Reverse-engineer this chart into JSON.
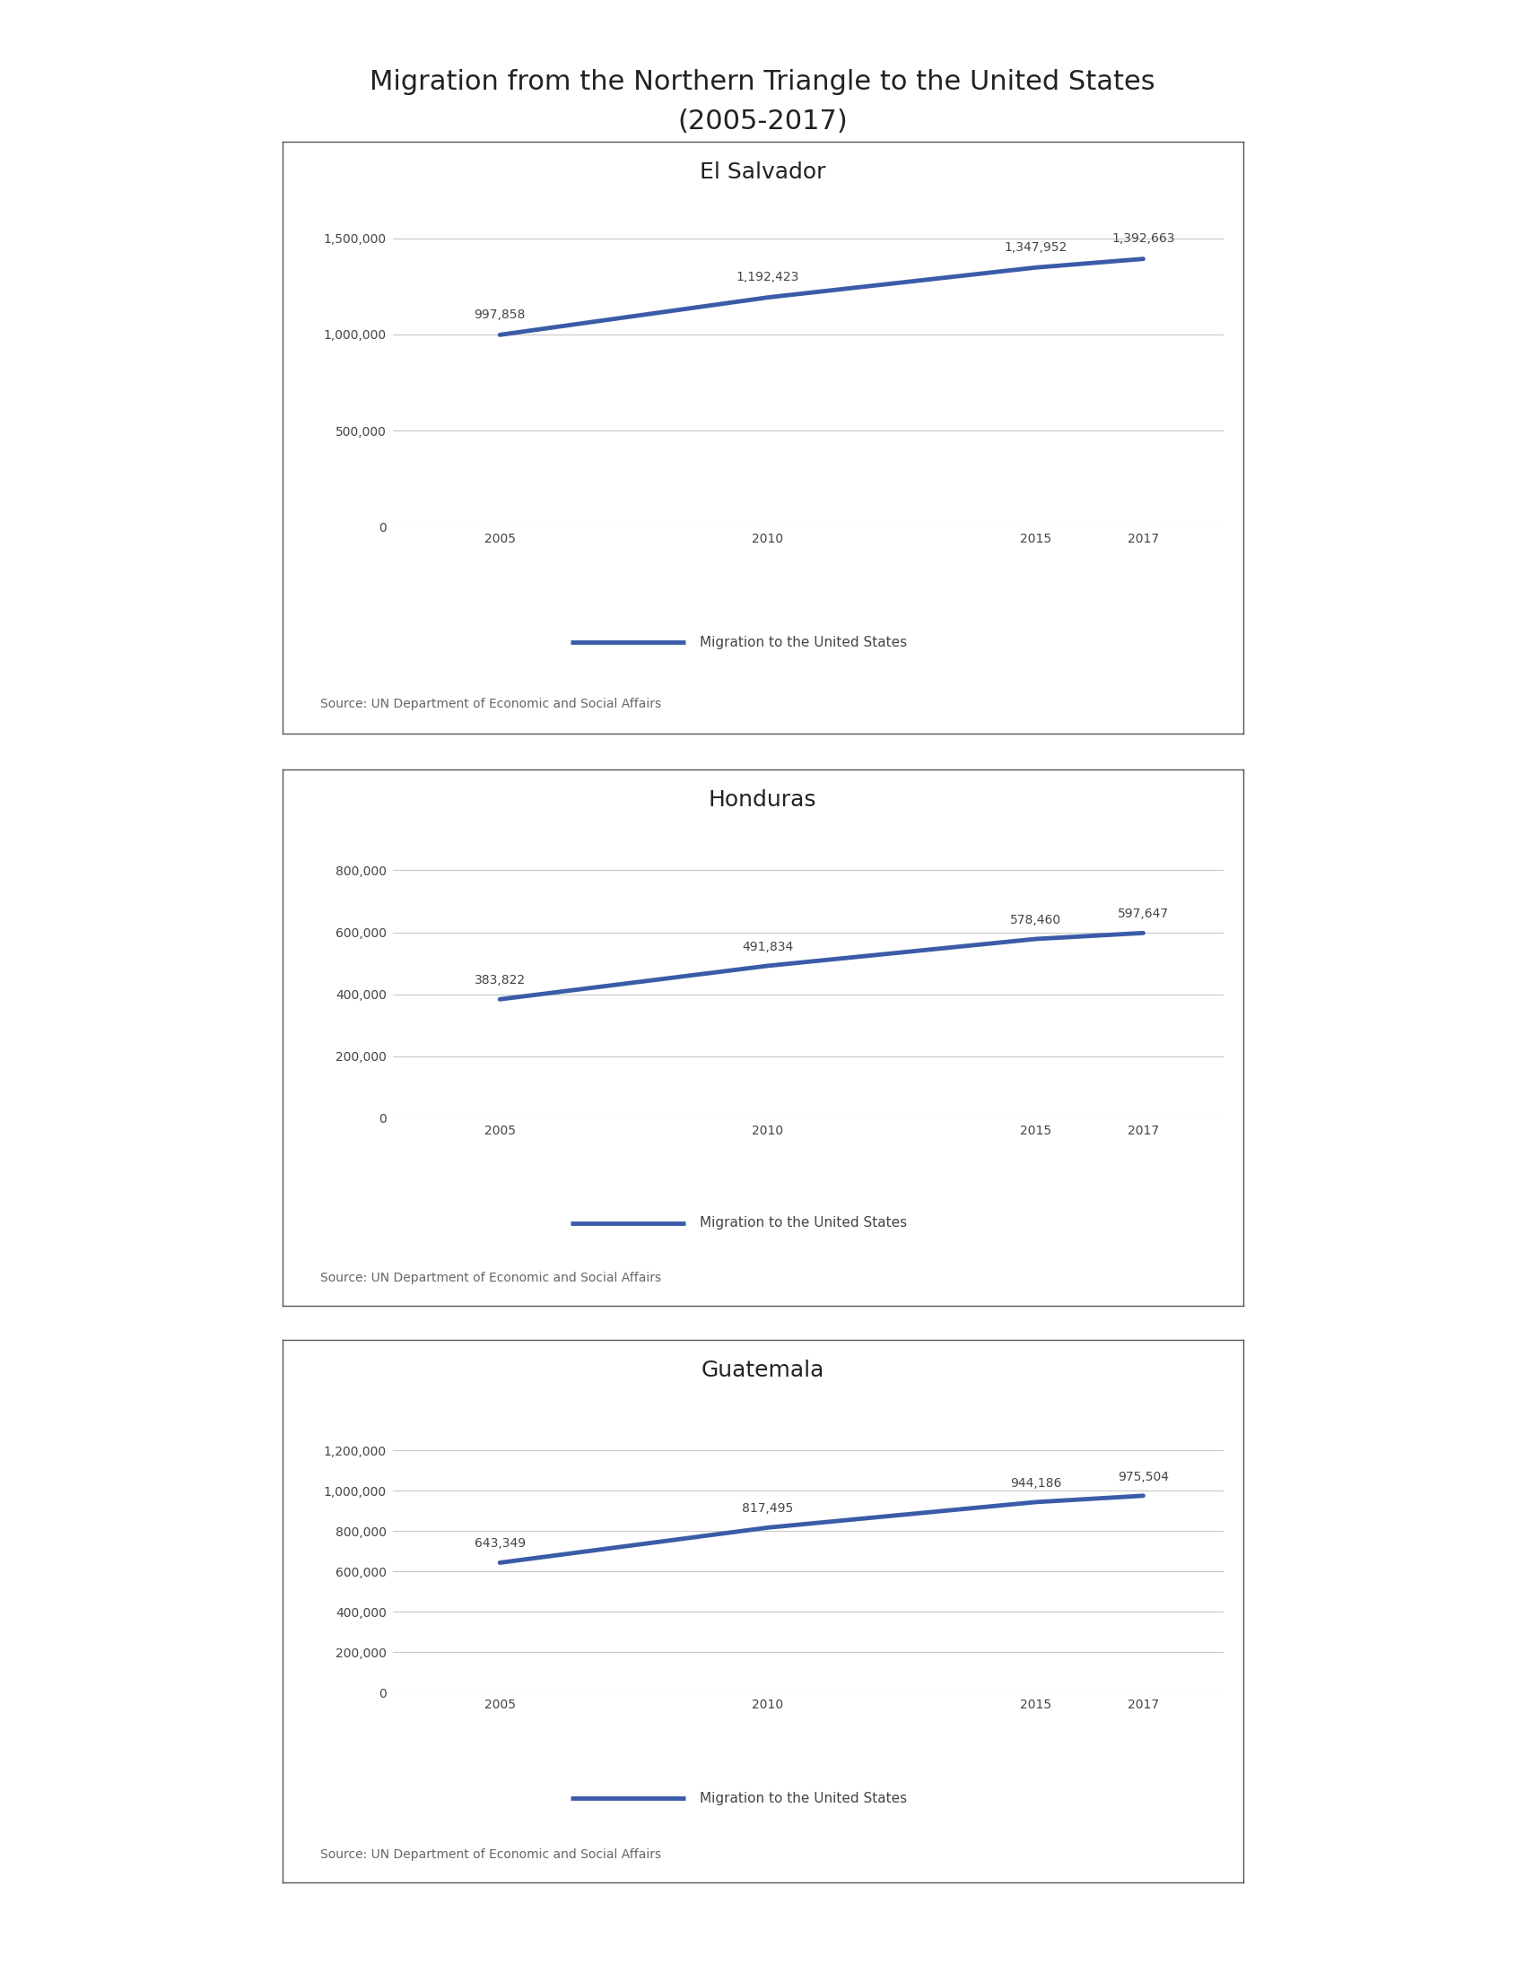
{
  "title_line1": "Migration from the Northern Triangle to the United States",
  "title_line2": "(2005-2017)",
  "title_fontsize": 22,
  "background_color": "#ffffff",
  "charts": [
    {
      "country": "El Salvador",
      "years": [
        2005,
        2010,
        2015,
        2017
      ],
      "values": [
        997858,
        1192423,
        1347952,
        1392663
      ],
      "labels": [
        "997,858",
        "1,192,423",
        "1,347,952",
        "1,392,663"
      ],
      "ylim": [
        0,
        1600000
      ],
      "yticks": [
        0,
        500000,
        1000000,
        1500000
      ],
      "ytick_labels": [
        "0",
        "500,000",
        "1,000,000",
        "1,500,000"
      ],
      "line_color": "#3a5ca8",
      "source": "Source: UN Department of Economic and Social Affairs",
      "legend_label": "Migration to the United States"
    },
    {
      "country": "Honduras",
      "years": [
        2005,
        2010,
        2015,
        2017
      ],
      "values": [
        383822,
        491834,
        578460,
        597647
      ],
      "labels": [
        "383,822",
        "491,834",
        "578,460",
        "597,647"
      ],
      "ylim": [
        0,
        900000
      ],
      "yticks": [
        0,
        200000,
        400000,
        600000,
        800000
      ],
      "ytick_labels": [
        "0",
        "200,000",
        "400,000",
        "600,000",
        "800,000"
      ],
      "line_color": "#3a5ca8",
      "source": "Source: UN Department of Economic and Social Affairs",
      "legend_label": "Migration to the United States"
    },
    {
      "country": "Guatemala",
      "years": [
        2005,
        2010,
        2015,
        2017
      ],
      "values": [
        643349,
        817495,
        944186,
        975504
      ],
      "labels": [
        "643,349",
        "817,495",
        "944,186",
        "975,504"
      ],
      "ylim": [
        0,
        1400000
      ],
      "yticks": [
        0,
        200000,
        400000,
        600000,
        800000,
        1000000,
        1200000
      ],
      "ytick_labels": [
        "0",
        "200,000",
        "400,000",
        "600,000",
        "800,000",
        "1,000,000",
        "1,200,000"
      ],
      "line_color": "#3a5ca8",
      "source": "Source: UN Department of Economic and Social Affairs",
      "legend_label": "Migration to the United States"
    }
  ],
  "box_facecolor": "#ffffff",
  "box_edgecolor": "#555555",
  "grid_color": "#c8c8c8",
  "label_color": "#444444",
  "source_color": "#666666",
  "tick_label_color": "#444444",
  "country_title_fontsize": 18,
  "data_label_fontsize": 10,
  "source_fontsize": 10,
  "legend_fontsize": 11,
  "tick_fontsize": 10
}
